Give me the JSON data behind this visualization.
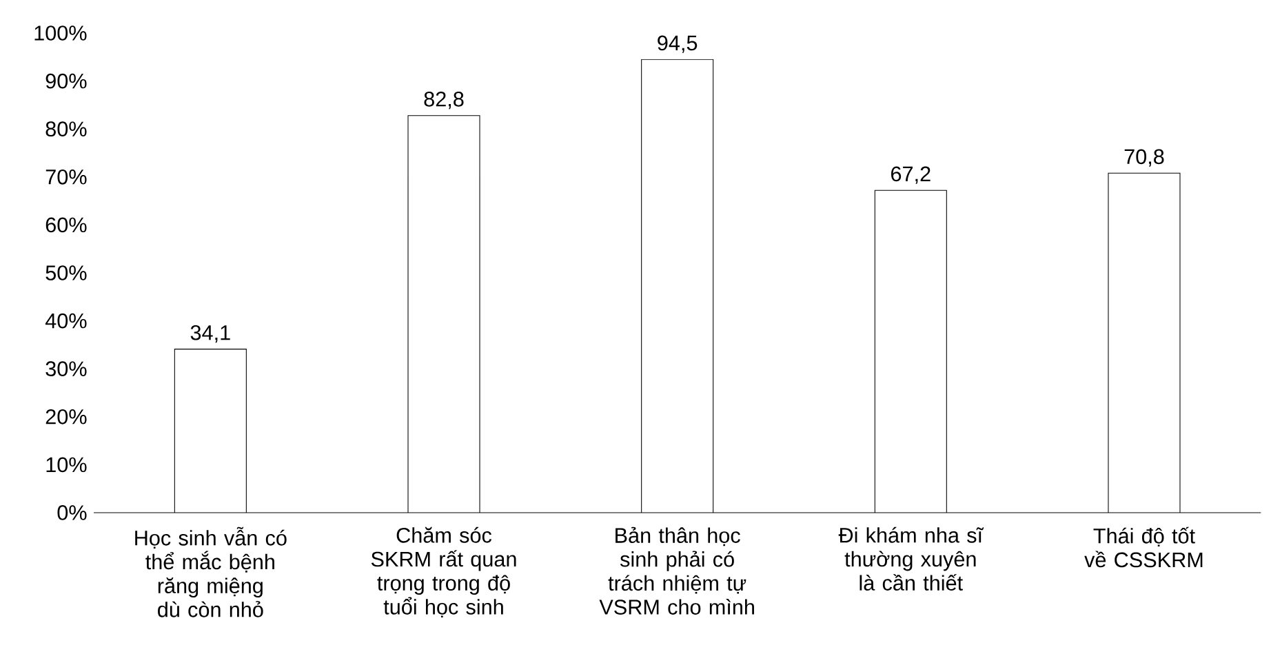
{
  "chart_data": {
    "type": "bar",
    "categories": [
      "Học sinh vẫn có thể mắc bệnh răng miệng dù còn nhỏ",
      "Chăm sóc SKRM rất quan trọng trong độ tuổi học sinh",
      "Bản thân học sinh phải có trách nhiệm tự VSRM cho mình",
      "Đi khám nha sĩ thường xuyên là cần thiết",
      "Thái độ tốt về CSSKRM"
    ],
    "values": [
      34.1,
      82.8,
      94.5,
      67.2,
      70.8
    ],
    "value_labels": [
      "34,1",
      "82,8",
      "94,5",
      "67,2",
      "70,8"
    ],
    "color": "#ffffff",
    "ylim": [
      0,
      100
    ],
    "yticks": [
      {
        "value": 0,
        "label": "0%"
      },
      {
        "value": 10,
        "label": "10%"
      },
      {
        "value": 20,
        "label": "20%"
      },
      {
        "value": 30,
        "label": "30%"
      },
      {
        "value": 40,
        "label": "40%"
      },
      {
        "value": 50,
        "label": "50%"
      },
      {
        "value": 60,
        "label": "60%"
      },
      {
        "value": 70,
        "label": "70%"
      },
      {
        "value": 80,
        "label": "80%"
      },
      {
        "value": 90,
        "label": "90%"
      },
      {
        "value": 100,
        "label": "100%"
      }
    ],
    "grid": false
  }
}
